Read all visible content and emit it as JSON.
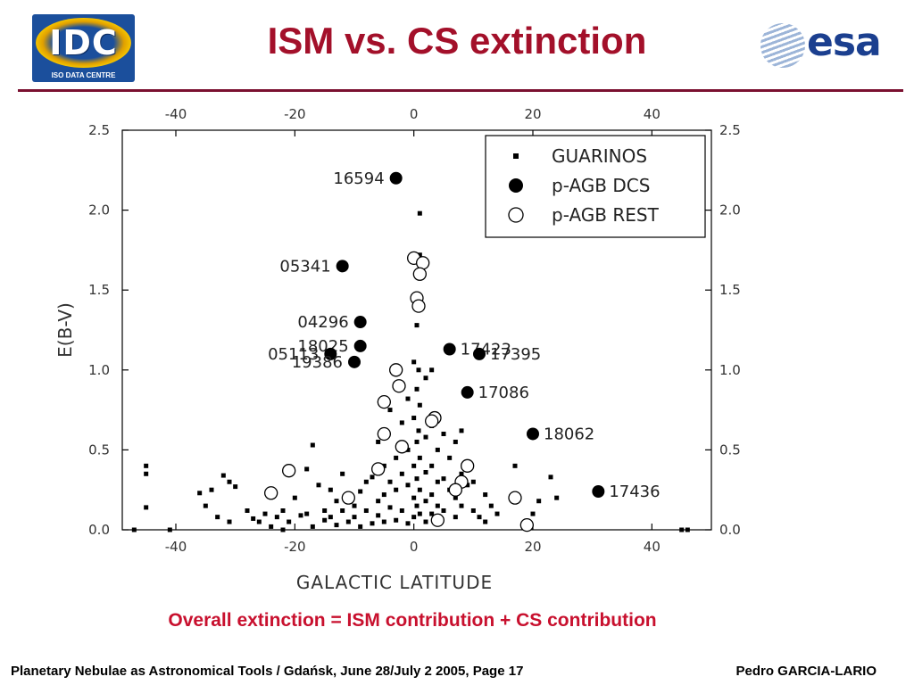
{
  "slide": {
    "title": "ISM vs. CS extinction",
    "caption": "Overall extinction = ISM contribution + CS contribution",
    "footer_left": "Planetary Nebulae as Astronomical Tools / Gdańsk, June 28/July 2 2005, Page 17",
    "footer_right": "Pedro GARCIA-LARIO",
    "logos": {
      "left": {
        "name": "idc-logo",
        "text": "IDC",
        "subtext": "ISO DATA CENTRE"
      },
      "right": {
        "name": "esa-logo",
        "text": "esa"
      }
    },
    "colors": {
      "title": "#a3102a",
      "rule": "#7a1030",
      "caption": "#c8102e"
    }
  },
  "chart_data": {
    "type": "scatter",
    "xlabel": "GALACTIC LATITUDE",
    "ylabel": "E(B-V)",
    "xlim": [
      -49,
      50
    ],
    "ylim": [
      0,
      2.5
    ],
    "x_ticks": [
      -40,
      -20,
      0,
      20,
      40
    ],
    "y_ticks": [
      0.0,
      0.5,
      1.0,
      1.5,
      2.0,
      2.5
    ],
    "x_tick_labels": [
      "-40",
      "-20",
      "0",
      "20",
      "40"
    ],
    "y_tick_labels": [
      "0.0",
      "0.5",
      "1.0",
      "1.5",
      "2.0",
      "2.5"
    ],
    "mirror_axes": true,
    "grid": false,
    "legend_position": "top-right",
    "series": [
      {
        "name": "GUARINOS",
        "marker": "small-filled-square",
        "points": [
          [
            -45,
            0.4
          ],
          [
            -45,
            0.35
          ],
          [
            -45,
            0.14
          ],
          [
            -47,
            0.0
          ],
          [
            -41,
            0.0
          ],
          [
            -36,
            0.23
          ],
          [
            -35,
            0.15
          ],
          [
            -34,
            0.25
          ],
          [
            -33,
            0.08
          ],
          [
            -32,
            0.34
          ],
          [
            -31,
            0.3
          ],
          [
            -31,
            0.05
          ],
          [
            -30,
            0.27
          ],
          [
            -28,
            0.12
          ],
          [
            -27,
            0.07
          ],
          [
            -26,
            0.05
          ],
          [
            -25,
            0.1
          ],
          [
            -24,
            0.02
          ],
          [
            -23,
            0.08
          ],
          [
            -22,
            0.0
          ],
          [
            -22,
            0.12
          ],
          [
            -21,
            0.05
          ],
          [
            -20,
            0.2
          ],
          [
            -19,
            0.09
          ],
          [
            -18,
            0.38
          ],
          [
            -18,
            0.1
          ],
          [
            -17,
            0.02
          ],
          [
            -17,
            0.53
          ],
          [
            -16,
            0.28
          ],
          [
            -15,
            0.12
          ],
          [
            -15,
            0.06
          ],
          [
            -14,
            0.25
          ],
          [
            -14,
            0.08
          ],
          [
            -13,
            0.18
          ],
          [
            -13,
            0.03
          ],
          [
            -12,
            0.12
          ],
          [
            -12,
            0.35
          ],
          [
            -11,
            0.05
          ],
          [
            -11,
            0.22
          ],
          [
            -10,
            0.15
          ],
          [
            -10,
            0.08
          ],
          [
            -9,
            0.24
          ],
          [
            -9,
            0.02
          ],
          [
            -8,
            0.3
          ],
          [
            -8,
            0.12
          ],
          [
            -7,
            0.04
          ],
          [
            -7,
            0.33
          ],
          [
            -6,
            0.18
          ],
          [
            -6,
            0.55
          ],
          [
            -6,
            0.09
          ],
          [
            -5,
            0.4
          ],
          [
            -5,
            0.22
          ],
          [
            -5,
            0.05
          ],
          [
            -4,
            0.75
          ],
          [
            -4,
            0.3
          ],
          [
            -4,
            0.14
          ],
          [
            -3,
            0.9
          ],
          [
            -3,
            0.45
          ],
          [
            -3,
            0.25
          ],
          [
            -3,
            0.06
          ],
          [
            -2,
            0.67
          ],
          [
            -2,
            0.35
          ],
          [
            -2,
            0.12
          ],
          [
            -1,
            0.82
          ],
          [
            -1,
            0.5
          ],
          [
            -1,
            0.28
          ],
          [
            -1,
            0.04
          ],
          [
            0,
            1.05
          ],
          [
            0,
            0.7
          ],
          [
            0,
            0.4
          ],
          [
            0,
            0.2
          ],
          [
            0,
            0.08
          ],
          [
            0.5,
            1.28
          ],
          [
            0.5,
            0.88
          ],
          [
            0.5,
            0.55
          ],
          [
            0.5,
            0.32
          ],
          [
            0.5,
            0.15
          ],
          [
            0.8,
            1.0
          ],
          [
            0.8,
            0.62
          ],
          [
            1,
            1.46
          ],
          [
            1,
            1.72
          ],
          [
            1,
            1.98
          ],
          [
            1,
            0.78
          ],
          [
            1,
            0.45
          ],
          [
            1,
            0.25
          ],
          [
            1,
            0.1
          ],
          [
            2,
            0.95
          ],
          [
            2,
            0.58
          ],
          [
            2,
            0.36
          ],
          [
            2,
            0.18
          ],
          [
            2,
            0.05
          ],
          [
            3,
            1.0
          ],
          [
            3,
            0.65
          ],
          [
            3,
            0.4
          ],
          [
            3,
            0.22
          ],
          [
            3,
            0.1
          ],
          [
            4,
            0.5
          ],
          [
            4,
            0.3
          ],
          [
            4,
            0.15
          ],
          [
            5,
            0.6
          ],
          [
            5,
            0.32
          ],
          [
            5,
            0.12
          ],
          [
            6,
            0.45
          ],
          [
            6,
            0.25
          ],
          [
            7,
            0.55
          ],
          [
            7,
            0.2
          ],
          [
            7,
            0.08
          ],
          [
            8,
            0.62
          ],
          [
            8,
            0.35
          ],
          [
            8,
            0.15
          ],
          [
            9,
            0.4
          ],
          [
            9,
            0.28
          ],
          [
            10,
            0.3
          ],
          [
            10,
            0.12
          ],
          [
            11,
            0.08
          ],
          [
            12,
            0.22
          ],
          [
            12,
            0.05
          ],
          [
            13,
            0.15
          ],
          [
            14,
            0.1
          ],
          [
            17,
            0.4
          ],
          [
            19,
            0.05
          ],
          [
            20,
            0.1
          ],
          [
            21,
            0.18
          ],
          [
            23,
            0.33
          ],
          [
            24,
            0.2
          ],
          [
            45,
            0.0
          ],
          [
            46,
            0.0
          ]
        ]
      },
      {
        "name": "p-AGB DCS",
        "marker": "filled-circle",
        "points": [
          [
            -3,
            2.2,
            "16594"
          ],
          [
            -12,
            1.65,
            "05341"
          ],
          [
            -9,
            1.3,
            "04296"
          ],
          [
            -9,
            1.15,
            "18025"
          ],
          [
            -14,
            1.1,
            "05113"
          ],
          [
            -10,
            1.05,
            "19386"
          ],
          [
            6,
            1.13,
            "17423"
          ],
          [
            11,
            1.1,
            "17395"
          ],
          [
            9,
            0.86,
            "17086"
          ],
          [
            20,
            0.6,
            "18062"
          ],
          [
            31,
            0.24,
            "17436"
          ]
        ]
      },
      {
        "name": "p-AGB REST",
        "marker": "open-circle",
        "points": [
          [
            0,
            1.7
          ],
          [
            1.5,
            1.67
          ],
          [
            1,
            1.6
          ],
          [
            0.5,
            1.45
          ],
          [
            0.8,
            1.4
          ],
          [
            -3,
            1.0
          ],
          [
            -5,
            0.8
          ],
          [
            -2.5,
            0.9
          ],
          [
            3.5,
            0.7
          ],
          [
            3,
            0.68
          ],
          [
            -5,
            0.6
          ],
          [
            -2,
            0.52
          ],
          [
            -6,
            0.38
          ],
          [
            -21,
            0.37
          ],
          [
            9,
            0.4
          ],
          [
            8,
            0.3
          ],
          [
            7,
            0.25
          ],
          [
            -24,
            0.23
          ],
          [
            -11,
            0.2
          ],
          [
            17,
            0.2
          ],
          [
            19,
            0.03
          ],
          [
            4,
            0.06
          ]
        ]
      }
    ]
  }
}
